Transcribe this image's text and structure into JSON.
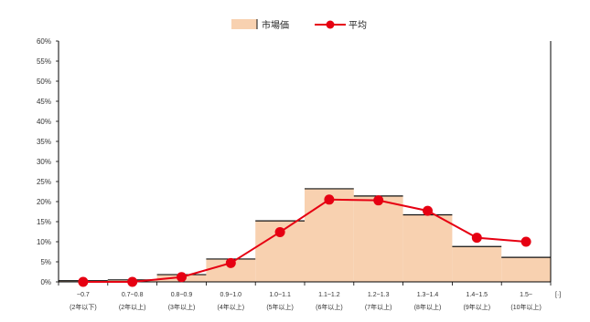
{
  "chart_data": {
    "type": "bar",
    "title": "",
    "xlabel": "",
    "ylabel": "",
    "ylim": [
      0,
      0.6
    ],
    "yticks": [
      "0%",
      "5%",
      "10%",
      "15%",
      "20%",
      "25%",
      "30%",
      "35%",
      "40%",
      "45%",
      "50%",
      "55%",
      "60%"
    ],
    "x_unit_label": "[·]",
    "categories": [
      [
        "~0.7",
        "(2年以下)"
      ],
      [
        "0.7~0.8",
        "(2年以上)"
      ],
      [
        "0.8~0.9",
        "(3年以上)"
      ],
      [
        "0.9~1.0",
        "(4年以上)"
      ],
      [
        "1.0~1.1",
        "(5年以上)"
      ],
      [
        "1.1~1.2",
        "(6年以上)"
      ],
      [
        "1.2~1.3",
        "(7年以上)"
      ],
      [
        "1.3~1.4",
        "(8年以上)"
      ],
      [
        "1.4~1.5",
        "(9年以上)"
      ],
      [
        "1.5~",
        "(10年以上)"
      ]
    ],
    "legend_position": "top-center",
    "grid": false,
    "series": [
      {
        "name": "市場価",
        "kind": "area-step",
        "color": "#f8d1b0",
        "edge_color": "#111111",
        "values": [
          0.003,
          0.005,
          0.018,
          0.057,
          0.152,
          0.232,
          0.214,
          0.167,
          0.088,
          0.061
        ]
      },
      {
        "name": "平均",
        "kind": "line-marker",
        "color": "#e60012",
        "values": [
          0.0,
          0.0,
          0.012,
          0.047,
          0.124,
          0.205,
          0.203,
          0.177,
          0.11,
          0.1
        ]
      }
    ]
  }
}
